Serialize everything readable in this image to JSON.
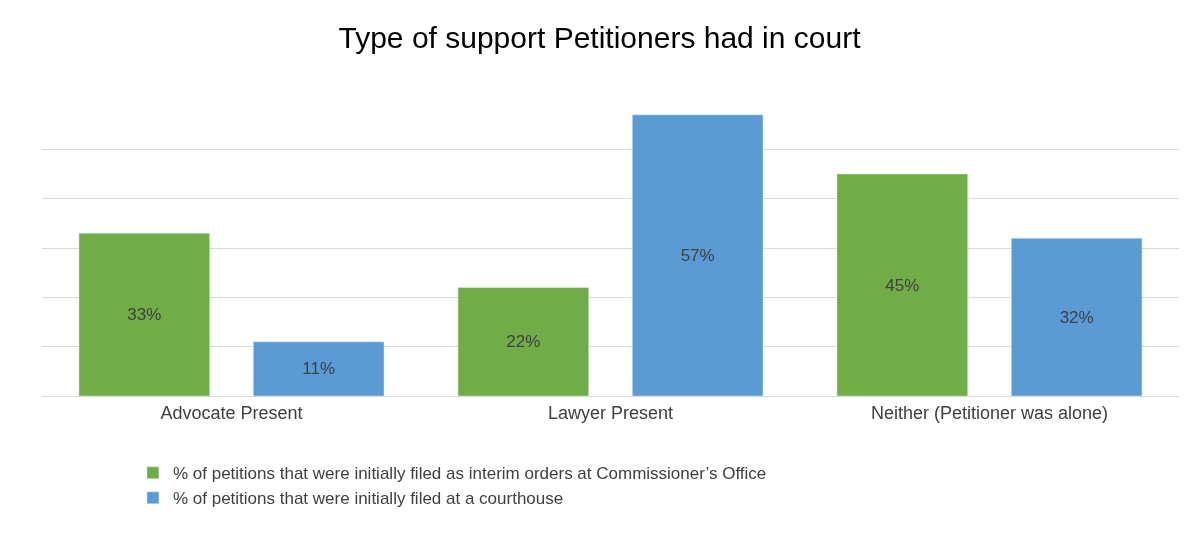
{
  "chart_data": {
    "type": "bar",
    "title": "Type of support Petitioners had in court",
    "categories": [
      "Advocate Present",
      "Lawyer Present",
      "Neither (Petitioner was alone)"
    ],
    "series": [
      {
        "name": "% of petitions that were initially filed as interim orders at Commissioner’s Office",
        "color": "#70ad47",
        "values": [
          33,
          22,
          45
        ],
        "value_labels": [
          "33%",
          "22%",
          "45%"
        ]
      },
      {
        "name": "% of petitions that were initially filed at a courthouse",
        "color": "#5b9bd5",
        "values": [
          11,
          57,
          32
        ],
        "value_labels": [
          "11%",
          "57%",
          "32%"
        ]
      }
    ],
    "tick_labels": "x",
    "grid": "y",
    "legend": "bottom"
  }
}
